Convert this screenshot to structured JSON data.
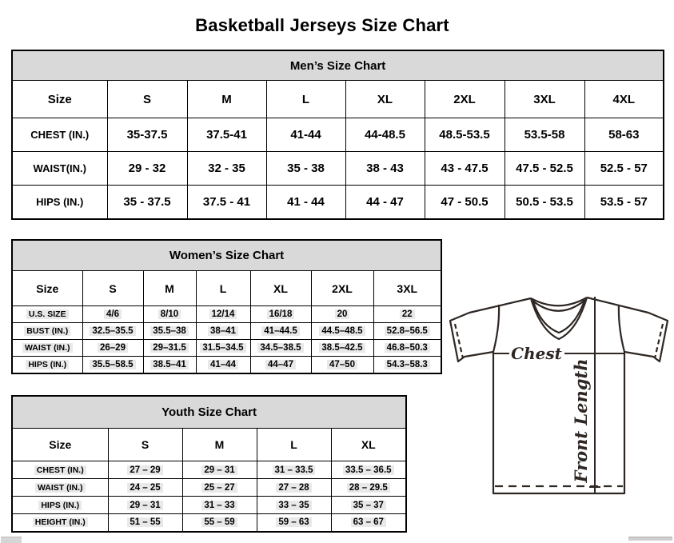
{
  "title": "Basketball Jerseys Size Chart",
  "tables": {
    "mens": {
      "title": "Men’s Size Chart",
      "columns": [
        "Size",
        "S",
        "M",
        "L",
        "XL",
        "2XL",
        "3XL",
        "4XL"
      ],
      "rows": [
        {
          "label": "CHEST (IN.)",
          "values": [
            "35-37.5",
            "37.5-41",
            "41-44",
            "44-48.5",
            "48.5-53.5",
            "53.5-58",
            "58-63"
          ]
        },
        {
          "label": "WAIST(IN.)",
          "values": [
            "29 - 32",
            "32 - 35",
            "35 - 38",
            "38 - 43",
            "43 - 47.5",
            "47.5 - 52.5",
            "52.5 - 57"
          ]
        },
        {
          "label": "HIPS (IN.)",
          "values": [
            "35 - 37.5",
            "37.5 - 41",
            "41 - 44",
            "44 - 47",
            "47 - 50.5",
            "50.5 - 53.5",
            "53.5 - 57"
          ]
        }
      ]
    },
    "womens": {
      "title": "Women’s Size Chart",
      "columns": [
        "Size",
        "S",
        "M",
        "L",
        "XL",
        "2XL",
        "3XL"
      ],
      "rows": [
        {
          "label": "U.S. SIZE",
          "values": [
            "4/6",
            "8/10",
            "12/14",
            "16/18",
            "20",
            "22"
          ]
        },
        {
          "label": "BUST (IN.)",
          "values": [
            "32.5–35.5",
            "35.5–38",
            "38–41",
            "41–44.5",
            "44.5–48.5",
            "52.8–56.5"
          ]
        },
        {
          "label": "WAIST (IN.)",
          "values": [
            "26–29",
            "29–31.5",
            "31.5–34.5",
            "34.5–38.5",
            "38.5–42.5",
            "46.8–50.3"
          ]
        },
        {
          "label": "HIPS (IN.)",
          "values": [
            "35.5–58.5",
            "38.5–41",
            "41–44",
            "44–47",
            "47–50",
            "54.3–58.3"
          ]
        }
      ]
    },
    "youth": {
      "title": "Youth Size Chart",
      "columns": [
        "Size",
        "S",
        "M",
        "L",
        "XL"
      ],
      "rows": [
        {
          "label": "CHEST (IN.)",
          "values": [
            "27 – 29",
            "29 – 31",
            "31 – 33.5",
            "33.5 – 36.5"
          ]
        },
        {
          "label": "WAIST (IN.)",
          "values": [
            "24 – 25",
            "25 – 27",
            "27 – 28",
            "28 – 29.5"
          ]
        },
        {
          "label": "HIPS (IN.)",
          "values": [
            "29 – 31",
            "31 – 33",
            "33 – 35",
            "35 – 37"
          ]
        },
        {
          "label": "HEIGHT (IN.)",
          "values": [
            "51 – 55",
            "55 – 59",
            "59 – 63",
            "63 – 67"
          ]
        }
      ]
    }
  },
  "diagram": {
    "chest_label": "Chest",
    "front_length_label": "Front Length"
  },
  "colors": {
    "table_header_fill": "#d9d9d9",
    "cell_highlight": "#e9e9e9",
    "line_art": "#2e2723",
    "border": "#000000"
  }
}
